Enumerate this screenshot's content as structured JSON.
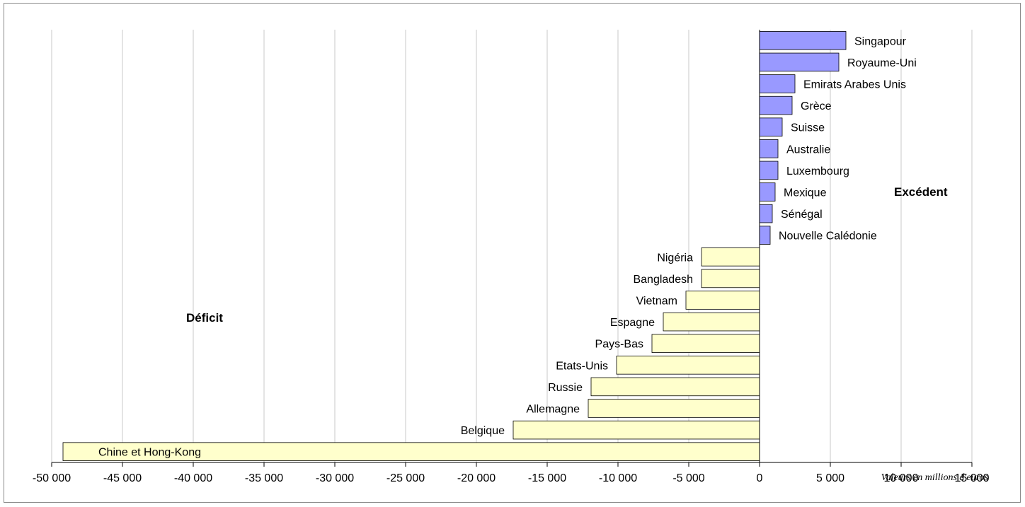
{
  "chart_data": {
    "type": "bar",
    "orientation": "horizontal",
    "title": "",
    "xlabel": "",
    "ylabel": "",
    "unit_note": "Valeurs en millions d'euros",
    "xlim": [
      -50000,
      15000
    ],
    "xticks": [
      -50000,
      -45000,
      -40000,
      -35000,
      -30000,
      -25000,
      -20000,
      -15000,
      -10000,
      -5000,
      0,
      5000,
      10000,
      15000
    ],
    "xtick_labels": [
      "-50 000",
      "-45 000",
      "-40 000",
      "-35 000",
      "-30 000",
      "-25 000",
      "-20 000",
      "-15 000",
      "-10 000",
      "-5 000",
      "0",
      "5 000",
      "10 000",
      "15 000"
    ],
    "grid": true,
    "legend": "none",
    "annotations": {
      "surplus_label": "Excédent",
      "deficit_label": "Déficit"
    },
    "colors": {
      "surplus": "#9999ff",
      "deficit": "#ffffcc",
      "bar_stroke": "#000000",
      "grid": "#c8c8c8"
    },
    "categories": [
      "Singapour",
      "Royaume-Uni",
      "Emirats Arabes Unis",
      "Grèce",
      "Suisse",
      "Australie",
      "Luxembourg",
      "Mexique",
      "Sénégal",
      "Nouvelle Calédonie",
      "Nigéria",
      "Bangladesh",
      "Vietnam",
      "Espagne",
      "Pays-Bas",
      "Etats-Unis",
      "Russie",
      "Allemagne",
      "Belgique",
      "Chine et Hong-Kong"
    ],
    "values": [
      6100,
      5600,
      2500,
      2300,
      1600,
      1300,
      1300,
      1100,
      900,
      750,
      -4100,
      -4100,
      -5200,
      -6800,
      -7600,
      -10100,
      -11900,
      -12100,
      -17400,
      -49200
    ]
  }
}
